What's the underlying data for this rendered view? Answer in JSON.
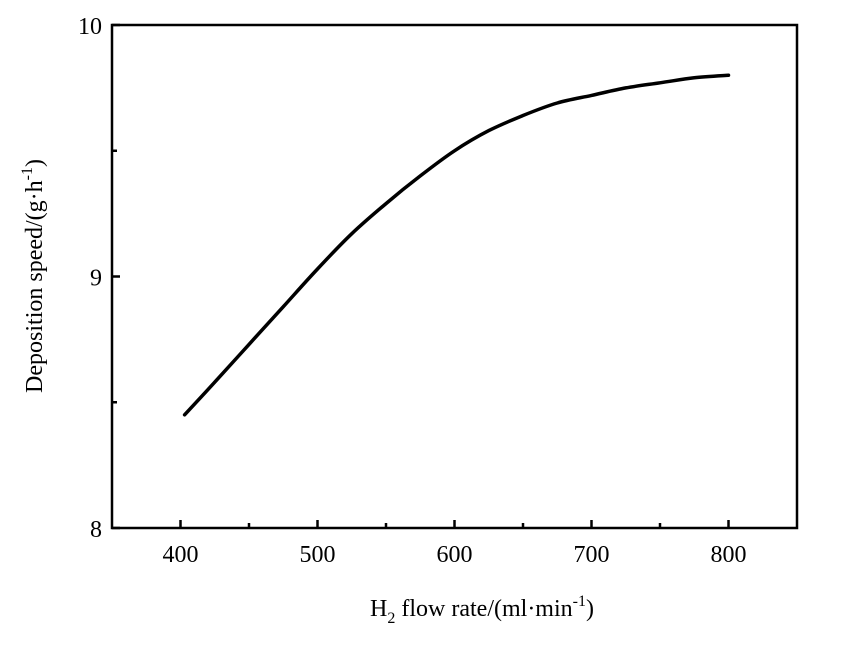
{
  "chart_data": {
    "type": "line",
    "xlabel": "H2 flow rate/(ml·min-1)",
    "xlabel_parts": {
      "pre": "H",
      "sub": "2",
      "mid": " flow rate/(ml·min",
      "sup": "-1",
      "post": ")"
    },
    "ylabel": "Deposition speed/(g·h-1)",
    "ylabel_parts": {
      "pre": "Deposition speed/(g·h",
      "sup": "-1",
      "post": ")"
    },
    "xlim": [
      350,
      850
    ],
    "ylim": [
      8,
      10
    ],
    "x_ticks": [
      400,
      500,
      600,
      700,
      800
    ],
    "x_tick_labels": [
      "400",
      "500",
      "600",
      "700",
      "800"
    ],
    "x_minor_ticks": [
      450,
      550,
      650,
      750
    ],
    "y_ticks": [
      8,
      9,
      10
    ],
    "y_tick_labels": [
      "8",
      "9",
      "10"
    ],
    "y_minor_ticks": [
      8.5,
      9.5
    ],
    "grid": false,
    "series": [
      {
        "x": [
          403,
          425,
          450,
          475,
          500,
          525,
          550,
          575,
          600,
          625,
          650,
          675,
          700,
          725,
          750,
          775,
          800
        ],
        "y": [
          8.45,
          8.58,
          8.73,
          8.88,
          9.03,
          9.17,
          9.29,
          9.4,
          9.5,
          9.58,
          9.64,
          9.69,
          9.72,
          9.75,
          9.77,
          9.79,
          9.8
        ]
      }
    ]
  }
}
